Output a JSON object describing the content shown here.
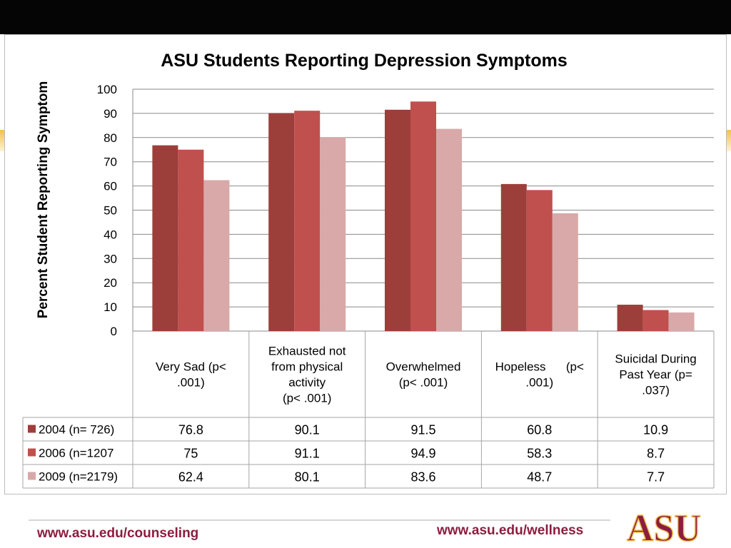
{
  "chart_data": {
    "type": "bar",
    "title": "ASU Students Reporting Depression Symptoms",
    "ylabel": "Percent Student Reporting Symptom",
    "ylim": [
      0,
      100
    ],
    "yticks": [
      0,
      10,
      20,
      30,
      40,
      50,
      60,
      70,
      80,
      90,
      100
    ],
    "grid": true,
    "legend": "data-table",
    "categories": [
      [
        "Very Sad (p<",
        ".001)"
      ],
      [
        "Exhausted not",
        "from physical",
        "activity",
        "(p< .001)"
      ],
      [
        "Overwhelmed",
        "(p< .001)"
      ],
      [
        "Hopeless      (p<",
        ".001)"
      ],
      [
        "Suicidal During",
        "Past Year (p=",
        ".037)"
      ]
    ],
    "series": [
      {
        "name": "2004 (n= 726)",
        "color": "#9c3f3a",
        "values": [
          76.8,
          90.1,
          91.5,
          60.8,
          10.9
        ],
        "labels": [
          "76.8",
          "90.1",
          "91.5",
          "60.8",
          "10.9"
        ]
      },
      {
        "name": "2006 (n=1207",
        "color": "#c0504d",
        "values": [
          75,
          91.1,
          94.9,
          58.3,
          8.7
        ],
        "labels": [
          "75",
          "91.1",
          "94.9",
          "58.3",
          "8.7"
        ]
      },
      {
        "name": "2009 (n=2179)",
        "color": "#d8a9a8",
        "values": [
          62.4,
          80.1,
          83.6,
          48.7,
          7.7
        ],
        "labels": [
          "62.4",
          "80.1",
          "83.6",
          "48.7",
          "7.7"
        ]
      }
    ]
  },
  "footer": {
    "left_link": "www.asu.edu/counseling",
    "right_link": "www.asu.edu/wellness",
    "logo_text": "ASU",
    "accent_color": "#8c1d40"
  }
}
